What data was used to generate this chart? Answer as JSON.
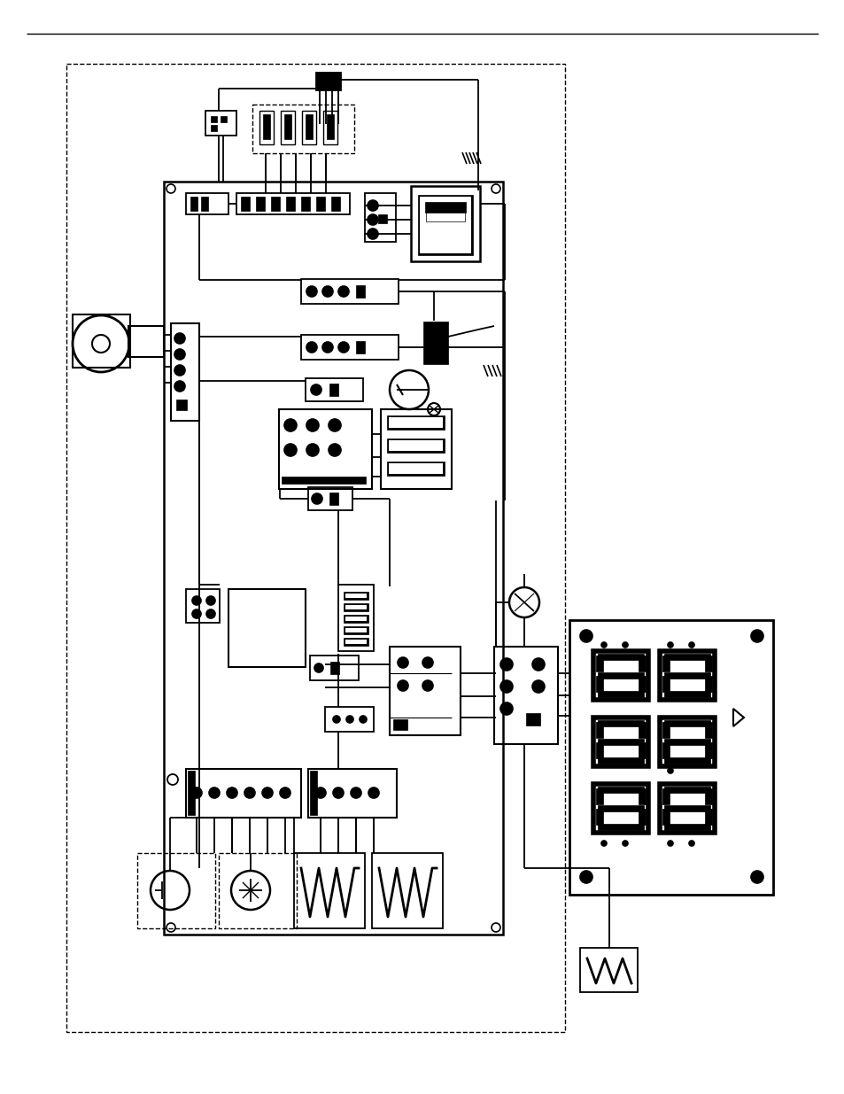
{
  "bg_color": "#ffffff",
  "fig_width": 9.54,
  "fig_height": 12.35,
  "dpi": 100
}
